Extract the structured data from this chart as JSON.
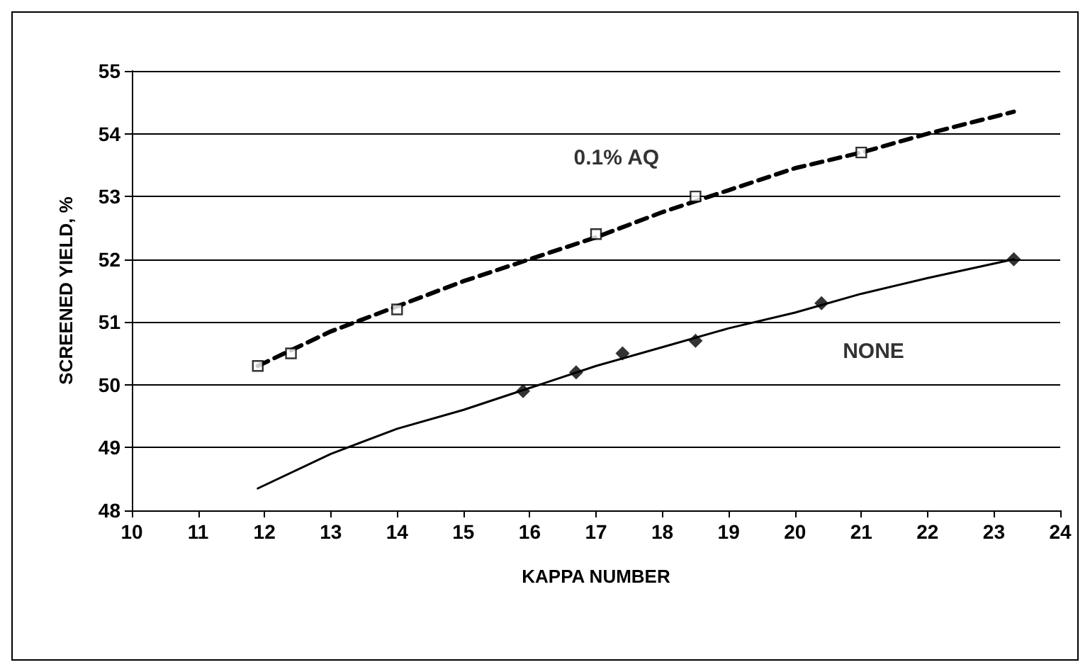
{
  "chart_data": {
    "type": "scatter",
    "xlabel": "KAPPA NUMBER",
    "ylabel": "SCREENED YIELD, %",
    "xlim": [
      10,
      24
    ],
    "xticks": [
      10,
      11,
      12,
      13,
      14,
      15,
      16,
      17,
      18,
      19,
      20,
      21,
      22,
      23,
      24
    ],
    "ylim": [
      48,
      55
    ],
    "yticks": [
      48,
      49,
      50,
      51,
      52,
      53,
      54,
      55
    ],
    "grid": "y",
    "series": [
      {
        "name": "0.1% AQ",
        "marker": "square",
        "color": "#000000",
        "x": [
          11.9,
          12.4,
          14,
          17,
          18.5,
          21
        ],
        "values": [
          50.3,
          50.5,
          51.2,
          52.4,
          53.0,
          53.7
        ]
      },
      {
        "name": "NONE",
        "marker": "diamond",
        "color": "#000000",
        "x": [
          15.9,
          16.7,
          17.4,
          18.5,
          20.4,
          23.3
        ],
        "values": [
          49.9,
          50.2,
          50.5,
          50.7,
          51.3,
          52.0
        ]
      },
      {
        "type": "line",
        "line_style": "dashed",
        "marker": "none",
        "color": "#000000",
        "x": [
          11.9,
          13,
          14,
          15,
          16,
          17,
          18,
          19,
          20,
          21,
          22,
          23.3
        ],
        "values": [
          50.3,
          50.85,
          51.25,
          51.65,
          52.0,
          52.35,
          52.75,
          53.1,
          53.45,
          53.7,
          54.0,
          54.35
        ]
      },
      {
        "type": "line",
        "line_style": "solid",
        "marker": "none",
        "color": "#000000",
        "x": [
          11.9,
          13,
          14,
          15,
          16,
          17,
          18,
          19,
          20,
          21,
          22,
          23.3
        ],
        "values": [
          48.35,
          48.9,
          49.3,
          49.6,
          49.95,
          50.3,
          50.6,
          50.9,
          51.15,
          51.45,
          51.7,
          52.0
        ]
      }
    ]
  }
}
